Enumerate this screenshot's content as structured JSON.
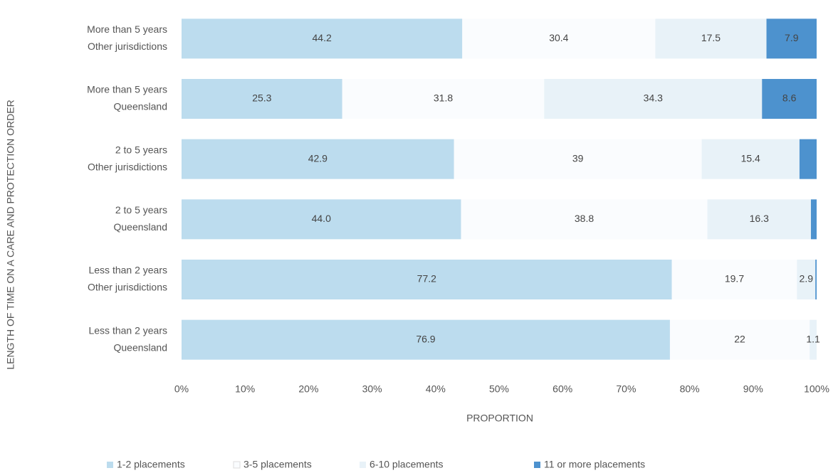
{
  "chart_data": {
    "type": "stacked_barh",
    "categories": [
      [
        "More than 5 years",
        "Other jurisdictions"
      ],
      [
        "More than 5 years",
        "Queensland"
      ],
      [
        "2 to 5 years",
        "Other jurisdictions"
      ],
      [
        "2 to 5 years",
        "Queensland"
      ],
      [
        "Less than 2 years",
        "Other jurisdictions"
      ],
      [
        "Less than 2 years",
        "Queensland"
      ]
    ],
    "series": [
      {
        "name": "1-2 placements",
        "color": "#bcdcee",
        "values": [
          44.2,
          25.3,
          42.9,
          44.0,
          77.2,
          76.9
        ],
        "value_labels": [
          "44.2",
          "25.3",
          "42.9",
          "44.0",
          "77.2",
          "76.9"
        ]
      },
      {
        "name": "3-5 placements",
        "color": "#fafcfe",
        "values": [
          30.4,
          31.8,
          39,
          38.8,
          19.7,
          22
        ],
        "value_labels": [
          "30.4",
          "31.8",
          "39",
          "38.8",
          "19.7",
          "22"
        ]
      },
      {
        "name": "6-10 placements",
        "color": "#e8f2f8",
        "values": [
          17.5,
          34.3,
          15.4,
          16.3,
          2.9,
          1.1
        ],
        "value_labels": [
          "17.5",
          "34.3",
          "15.4",
          "16.3",
          "2.9",
          "1.1"
        ]
      },
      {
        "name": "11 or more placements",
        "color": "#4d92ce",
        "values": [
          7.9,
          8.6,
          2.7,
          0.9,
          0.2,
          0
        ],
        "value_labels": [
          "7.9",
          "8.6",
          null,
          null,
          null,
          null
        ]
      }
    ],
    "xlabel": "PROPORTION",
    "ylabel": "LENGTH OF TIME ON A CARE AND PROTECTION ORDER",
    "xlim": [
      0,
      100
    ],
    "xticks": [
      {
        "value": 0,
        "label": "0%"
      },
      {
        "value": 10,
        "label": "10%"
      },
      {
        "value": 20,
        "label": "20%"
      },
      {
        "value": 30,
        "label": "30%"
      },
      {
        "value": 40,
        "label": "40%"
      },
      {
        "value": 50,
        "label": "50%"
      },
      {
        "value": 60,
        "label": "60%"
      },
      {
        "value": 70,
        "label": "70%"
      },
      {
        "value": 80,
        "label": "80%"
      },
      {
        "value": 90,
        "label": "90%"
      },
      {
        "value": 100,
        "label": "100%"
      }
    ],
    "legend": "bottom"
  }
}
